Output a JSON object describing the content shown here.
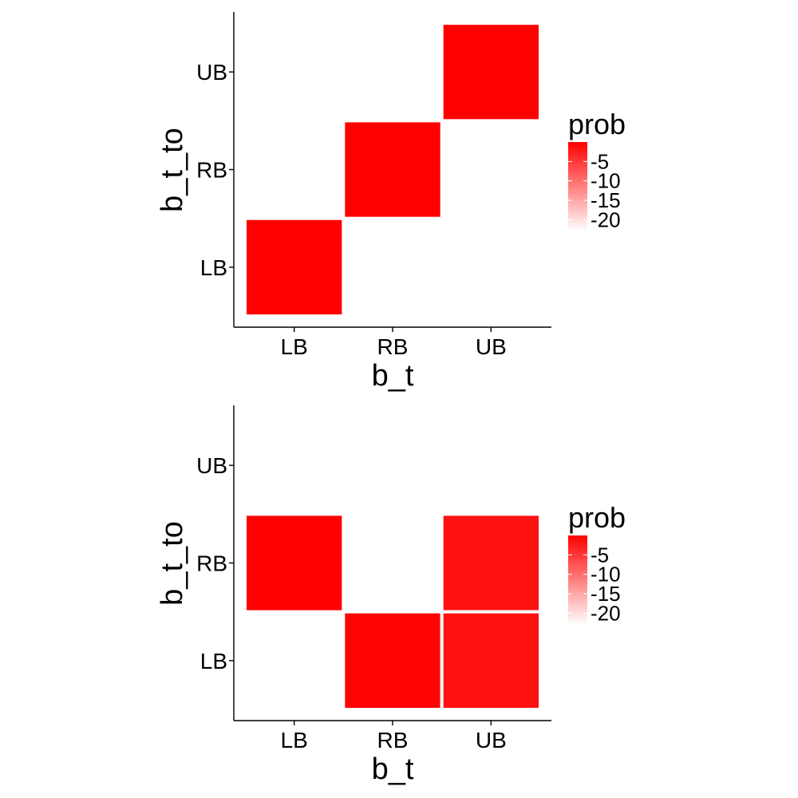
{
  "chart_data": [
    {
      "type": "heatmap",
      "title": "",
      "xlabel": "b_t",
      "ylabel": "b_t_to",
      "x_categories": [
        "LB",
        "RB",
        "UB"
      ],
      "y_categories": [
        "LB",
        "RB",
        "UB"
      ],
      "cells": [
        {
          "x": "LB",
          "y": "LB",
          "value": 0
        },
        {
          "x": "RB",
          "y": "RB",
          "value": 0
        },
        {
          "x": "UB",
          "y": "UB",
          "value": 0
        }
      ],
      "legend": {
        "title": "prob",
        "placement": "right",
        "labels": [
          "-5",
          "-10",
          "-15",
          "-20"
        ],
        "breaks": [
          -5,
          -10,
          -15,
          -20
        ],
        "range": [
          -23,
          0
        ],
        "colors": {
          "low": "#ffffff",
          "high": "#ff0000"
        }
      },
      "grid": false
    },
    {
      "type": "heatmap",
      "title": "",
      "xlabel": "b_t",
      "ylabel": "b_t_to",
      "x_categories": [
        "LB",
        "RB",
        "UB"
      ],
      "y_categories": [
        "LB",
        "RB",
        "UB"
      ],
      "cells": [
        {
          "x": "LB",
          "y": "RB",
          "value": 0
        },
        {
          "x": "RB",
          "y": "LB",
          "value": -0.4
        },
        {
          "x": "UB",
          "y": "RB",
          "value": -1.5
        },
        {
          "x": "UB",
          "y": "LB",
          "value": -1.5
        }
      ],
      "legend": {
        "title": "prob",
        "placement": "right",
        "labels": [
          "-5",
          "-10",
          "-15",
          "-20"
        ],
        "breaks": [
          -5,
          -10,
          -15,
          -20
        ],
        "range": [
          -23,
          0
        ],
        "colors": {
          "low": "#ffffff",
          "high": "#ff0000"
        }
      },
      "grid": false
    }
  ]
}
